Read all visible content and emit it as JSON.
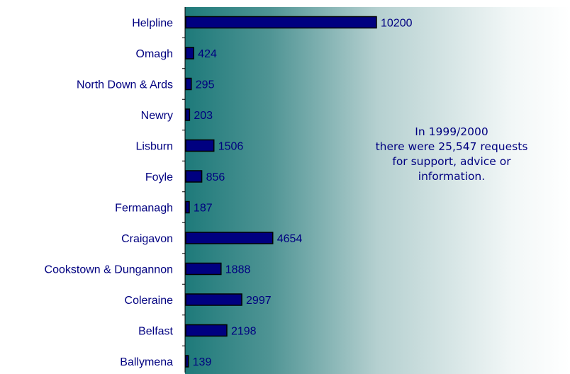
{
  "chart_data": {
    "type": "bar",
    "orientation": "horizontal",
    "categories": [
      "Helpline",
      "Omagh",
      "North Down & Ards",
      "Newry",
      "Lisburn",
      "Foyle",
      "Fermanagh",
      "Craigavon",
      "Cookstown & Dungannon",
      "Coleraine",
      "Belfast",
      "Ballymena"
    ],
    "values": [
      10200,
      424,
      295,
      203,
      1506,
      856,
      187,
      4654,
      1888,
      2997,
      2198,
      139
    ],
    "value_labels": [
      "10200",
      "424",
      "295",
      "203",
      "1506",
      "856",
      "187",
      "4654",
      "1888",
      "2997",
      "2198",
      "139"
    ],
    "title": "",
    "xlabel": "",
    "ylabel": "",
    "xlim": [
      0,
      10200
    ],
    "grid": false,
    "legend": "none",
    "colors": {
      "bar": "#000080",
      "bar_outline": "#000000",
      "label": "#000080",
      "panel_dark": "#1e7a7a"
    }
  },
  "annotation": {
    "lines": [
      "In 1999/2000",
      "there were 25,547 requests",
      "for support, advice or",
      "information."
    ]
  }
}
